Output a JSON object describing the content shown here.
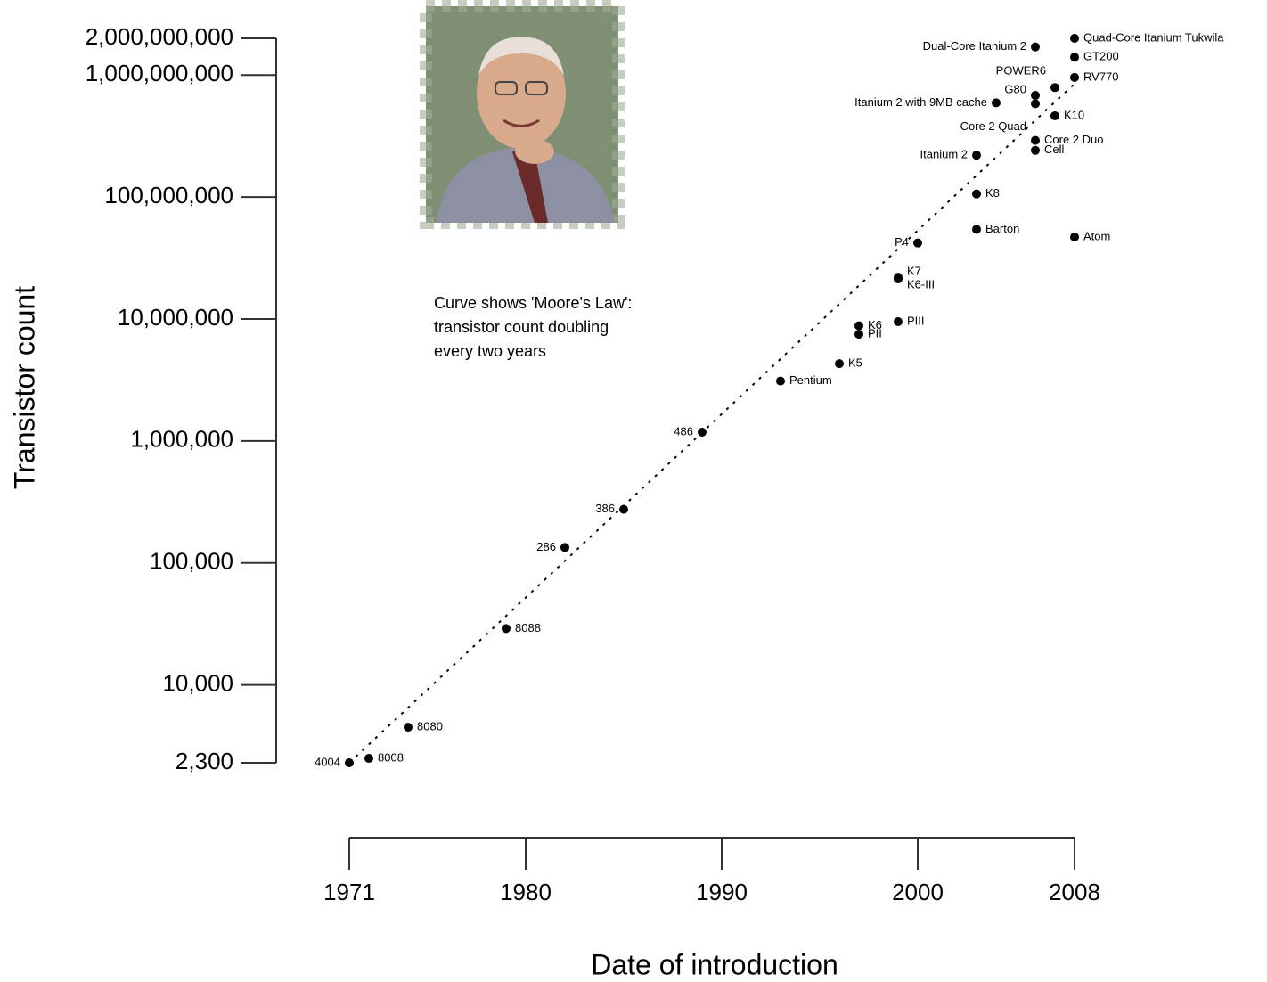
{
  "chart_data": {
    "type": "scatter",
    "y_label": "Transistor count",
    "x_label": "Date of introduction",
    "annotation": [
      "Curve shows 'Moore's Law':",
      "transistor count doubling",
      "every two years"
    ],
    "log_y": true,
    "color": "#000000",
    "xlim": [
      1971,
      2008
    ],
    "xticks": [
      1971,
      1980,
      1990,
      2000,
      2008
    ],
    "ylim": [
      2300,
      2000000000
    ],
    "yticks": [
      {
        "value": 2300,
        "label": "2,300"
      },
      {
        "value": 10000,
        "label": "10,000"
      },
      {
        "value": 100000,
        "label": "100,000"
      },
      {
        "value": 1000000,
        "label": "1,000,000"
      },
      {
        "value": 10000000,
        "label": "10,000,000"
      },
      {
        "value": 100000000,
        "label": "100,000,000"
      },
      {
        "value": 1000000000,
        "label": "1,000,000,000"
      },
      {
        "value": 2000000000,
        "label": "2,000,000,000"
      }
    ],
    "labels": [
      "4004",
      "8008",
      "8080",
      "8088",
      "286",
      "386",
      "486",
      "Pentium",
      "K5",
      "PII",
      "K6",
      "PIII",
      "K6-III",
      "K7",
      "P4",
      "Barton",
      "K8",
      "Itanium 2",
      "Cell",
      "Core 2 Duo",
      "K10",
      "Core 2 Quad",
      "Itanium 2 with 9MB cache",
      "G80",
      "POWER6",
      "RV770",
      "GT200",
      "Dual-Core Itanium 2",
      "Quad-Core Itanium Tukwila",
      "Atom"
    ],
    "x": [
      1971,
      1972,
      1974,
      1979,
      1982,
      1985,
      1989,
      1993,
      1996,
      1997,
      1997,
      1999,
      1999,
      1999,
      2000,
      2003,
      2003,
      2003,
      2006,
      2006,
      2007,
      2006,
      2004,
      2006,
      2007,
      2008,
      2008,
      2006,
      2008,
      2008
    ],
    "values": [
      2300,
      2500,
      4500,
      29000,
      134000,
      275000,
      1180000,
      3100000,
      4300000,
      7500000,
      8800000,
      9500000,
      21300000,
      22000000,
      42000000,
      54300000,
      105900000,
      220000000,
      241000000,
      291000000,
      463000000,
      582000000,
      592000000,
      681000000,
      789000000,
      956000000,
      1400000000,
      1700000000,
      2000000000,
      47000000
    ],
    "trend": {
      "x": [
        1971,
        2008
      ],
      "values": [
        2300,
        850000000
      ]
    }
  }
}
